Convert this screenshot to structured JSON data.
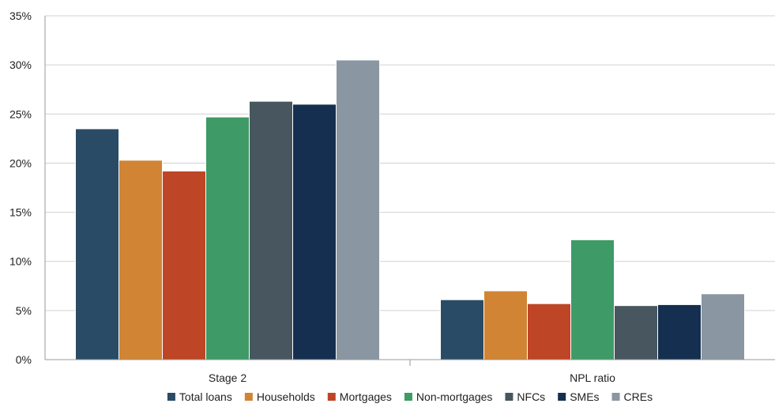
{
  "chart_data": {
    "type": "bar",
    "categories": [
      "Stage 2",
      "NPL ratio"
    ],
    "ylim": [
      0,
      35
    ],
    "yticks": [
      "0%",
      "5%",
      "10%",
      "15%",
      "20%",
      "25%",
      "30%",
      "35%"
    ],
    "ytick_values": [
      0,
      5,
      10,
      15,
      20,
      25,
      30,
      35
    ],
    "grid": true,
    "legend_position": "bottom",
    "series": [
      {
        "name": "Total loans",
        "color": "#2a4b66",
        "values": [
          23.5,
          6.1
        ]
      },
      {
        "name": "Households",
        "color": "#d08434",
        "values": [
          20.3,
          7.0
        ]
      },
      {
        "name": "Mortgages",
        "color": "#be4526",
        "values": [
          19.2,
          5.7
        ]
      },
      {
        "name": "Non-mortgages",
        "color": "#3e9a66",
        "values": [
          24.7,
          12.2
        ]
      },
      {
        "name": "NFCs",
        "color": "#48575f",
        "values": [
          26.3,
          5.5
        ]
      },
      {
        "name": "SMEs",
        "color": "#142f4f",
        "values": [
          26.0,
          5.6
        ]
      },
      {
        "name": "CREs",
        "color": "#8a96a1",
        "values": [
          30.5,
          6.7
        ]
      }
    ]
  }
}
